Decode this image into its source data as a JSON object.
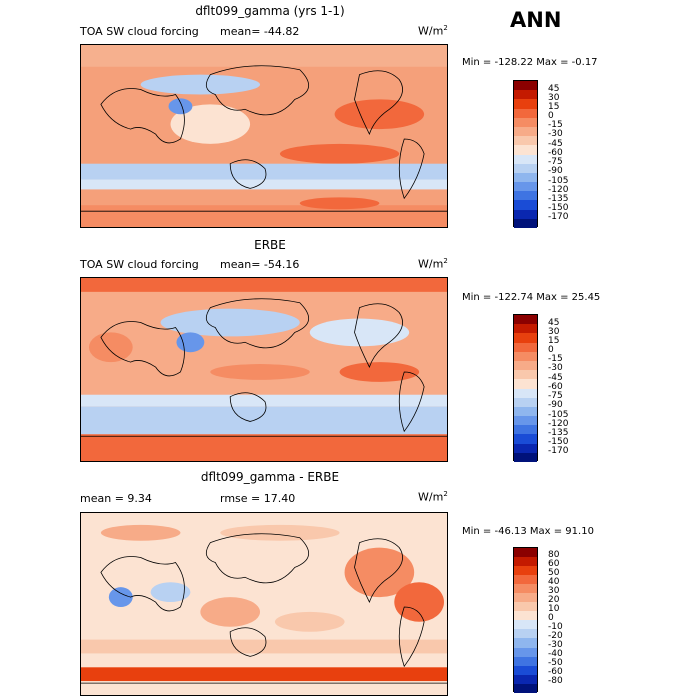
{
  "corner_label": "ANN",
  "panels": [
    {
      "title": "dflt099_gamma (yrs 1-1)",
      "left_label": "TOA SW cloud forcing",
      "mean_text": "mean= -44.82",
      "units": "W/m",
      "units_exp": "2",
      "minmax": "Min = -128.22 Max = -0.17",
      "colorbar": {
        "levels": [
          "45",
          "30",
          "15",
          "0",
          "-15",
          "-30",
          "-45",
          "-60",
          "-75",
          "-90",
          "-105",
          "-120",
          "-135",
          "-150",
          "-170"
        ],
        "colors": [
          "#8b0000",
          "#c41a00",
          "#e8400e",
          "#f2683c",
          "#f58c63",
          "#f7ab88",
          "#f9c8ac",
          "#fce3d2",
          "#d8e6f7",
          "#b8d1f2",
          "#8fb6ee",
          "#6796ea",
          "#3f74e2",
          "#1a4cd6",
          "#0a27b0",
          "#00127a"
        ]
      }
    },
    {
      "title": "ERBE",
      "left_label": "TOA SW cloud forcing",
      "mean_text": "mean= -54.16",
      "units": "W/m",
      "units_exp": "2",
      "minmax": "Min = -122.74 Max = 25.45",
      "colorbar": {
        "levels": [
          "45",
          "30",
          "15",
          "0",
          "-15",
          "-30",
          "-45",
          "-60",
          "-75",
          "-90",
          "-105",
          "-120",
          "-135",
          "-150",
          "-170"
        ],
        "colors": [
          "#8b0000",
          "#c41a00",
          "#e8400e",
          "#f2683c",
          "#f58c63",
          "#f7ab88",
          "#f9c8ac",
          "#fce3d2",
          "#d8e6f7",
          "#b8d1f2",
          "#8fb6ee",
          "#6796ea",
          "#3f74e2",
          "#1a4cd6",
          "#0a27b0",
          "#00127a"
        ]
      }
    },
    {
      "title": "dflt099_gamma - ERBE",
      "left_label": "mean = 9.34",
      "mean_text": "rmse = 17.40",
      "units": "W/m",
      "units_exp": "2",
      "minmax": "Min = -46.13 Max = 91.10",
      "colorbar": {
        "levels": [
          "80",
          "60",
          "50",
          "40",
          "30",
          "20",
          "10",
          "0",
          "-10",
          "-20",
          "-30",
          "-40",
          "-50",
          "-60",
          "-80"
        ],
        "colors": [
          "#8b0000",
          "#c41a00",
          "#e8400e",
          "#f2683c",
          "#f58c63",
          "#f7ab88",
          "#f9c8ac",
          "#fce3d2",
          "#d8e6f7",
          "#b8d1f2",
          "#8fb6ee",
          "#6796ea",
          "#3f74e2",
          "#1a4cd6",
          "#0a27b0",
          "#00127a"
        ]
      }
    }
  ],
  "chart_data": {
    "type": "heatmap",
    "panel_count": 3
  }
}
